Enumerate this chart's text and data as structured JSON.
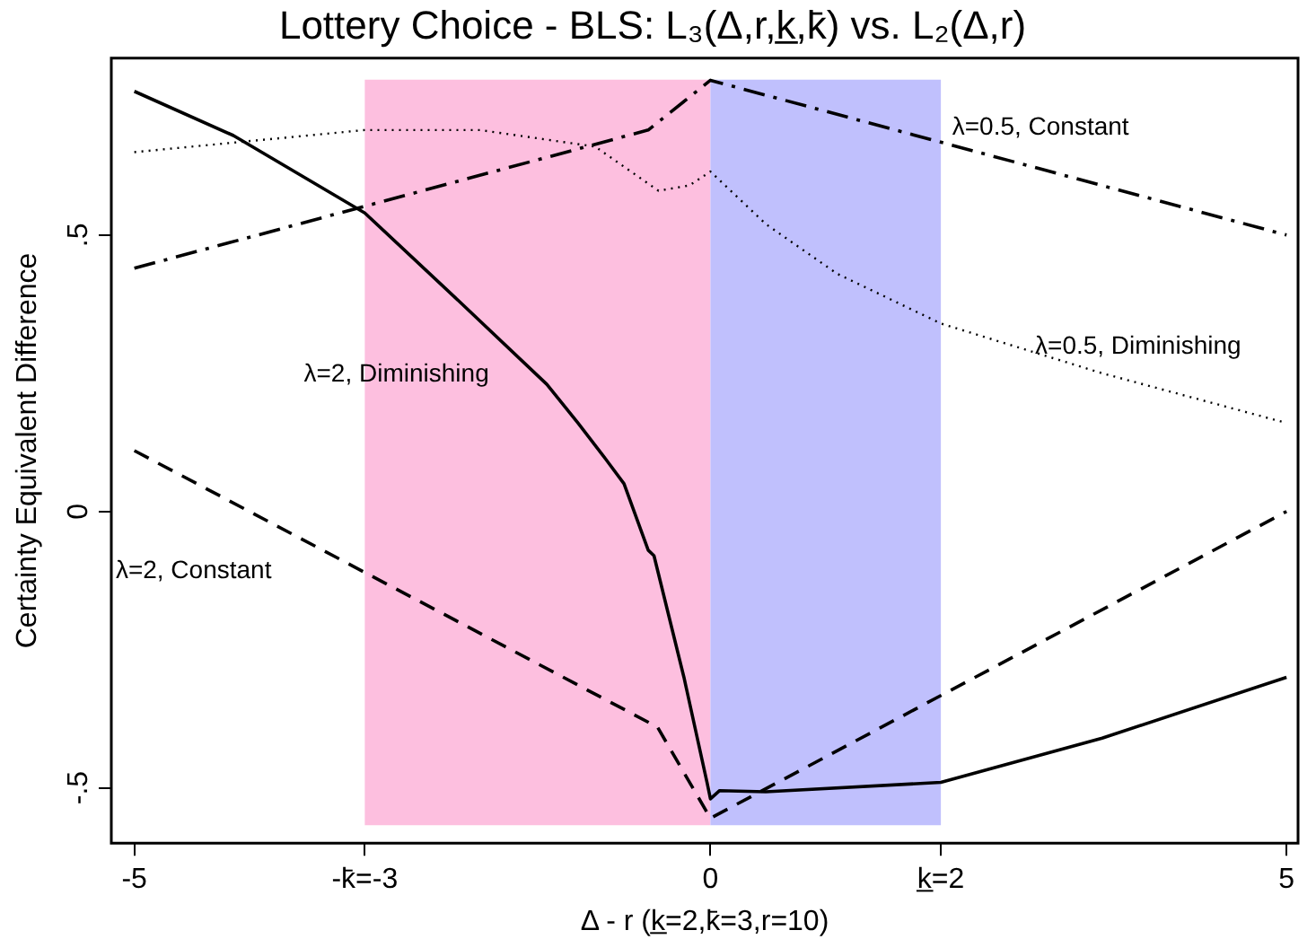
{
  "chart_data": {
    "type": "line",
    "title": "Lottery Choice - BLS: L₃(Δ,r,k̲,k̄) vs. L₂(Δ,r)",
    "xlabel": "Δ - r (k̲=2,k̄=3,r=10)",
    "ylabel": "Certainty Equivalent Difference",
    "xlim": [
      -5.2,
      5.1
    ],
    "ylim": [
      -0.6,
      0.82
    ],
    "xticks": [
      -5,
      {
        "value": -3,
        "label": "-k̄=-3"
      },
      0,
      {
        "value": 2,
        "label": "k̲=2"
      },
      5
    ],
    "yticks": [
      {
        "value": -0.5,
        "label": "-.5"
      },
      0,
      {
        "value": 0.5,
        "label": ".5"
      }
    ],
    "grid": false,
    "legend": false,
    "marker": "none",
    "bands": [
      {
        "axis": "x",
        "from": -3,
        "to": 0,
        "color": "#fdbfdf"
      },
      {
        "axis": "x",
        "from": 0,
        "to": 2,
        "color": "#c0c0fd"
      }
    ],
    "series": [
      {
        "name": "λ=2, Diminishing",
        "color": "#000000",
        "line_style": "solid",
        "x": [
          -5,
          -4.14,
          -3,
          -2.18,
          -1.42,
          -1.15,
          -0.91,
          -0.75,
          -0.54,
          -0.49,
          -0.23,
          -0.03,
          0,
          0.08,
          0.48,
          2,
          3.4,
          5
        ],
        "values": [
          0.76,
          0.68,
          0.54,
          0.38,
          0.23,
          0.16,
          0.095,
          0.05,
          -0.07,
          -0.08,
          -0.3,
          -0.49,
          -0.52,
          -0.505,
          -0.507,
          -0.49,
          -0.41,
          -0.3
        ]
      },
      {
        "name": "λ=2, Constant",
        "color": "#000000",
        "line_style": "dashed",
        "x": [
          -5,
          -0.46,
          0,
          5
        ],
        "values": [
          0.11,
          -0.39,
          -0.555,
          0
        ]
      },
      {
        "name": "λ=0.5, Constant",
        "color": "#000000",
        "line_style": "dashdot",
        "x": [
          -5,
          -0.54,
          0,
          5
        ],
        "values": [
          0.44,
          0.69,
          0.78,
          0.5
        ]
      },
      {
        "name": "λ=0.5, Diminishing",
        "color": "#000000",
        "line_style": "dotted",
        "x": [
          -5,
          -3,
          -2,
          -1,
          -0.45,
          -0.18,
          0,
          0.48,
          1.1,
          2,
          3.4,
          5
        ],
        "values": [
          0.65,
          0.69,
          0.69,
          0.66,
          0.58,
          0.59,
          0.615,
          0.52,
          0.43,
          0.34,
          0.25,
          0.16
        ]
      }
    ]
  }
}
